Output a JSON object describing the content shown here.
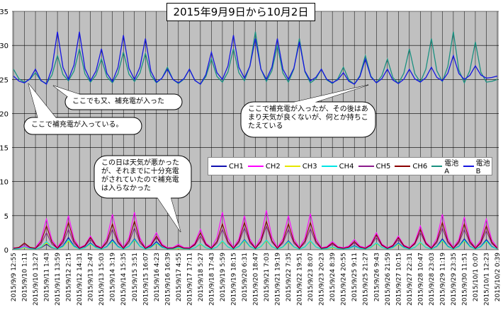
{
  "title": "2015年9月9日から10月2日",
  "chart_data": {
    "type": "line",
    "ylim": [
      0,
      35
    ],
    "yticks": [
      0,
      5,
      10,
      15,
      20,
      25,
      30,
      35
    ],
    "grid": true,
    "legend_position": "lower-right",
    "x": [
      "2015/9/9 12:55",
      "2015/9/10 1:11",
      "2015/9/10 13:27",
      "2015/9/11 1:43",
      "2015/9/11 13:59",
      "2015/9/12 2:15",
      "2015/9/12 14:31",
      "2015/9/13 2:47",
      "2015/9/13 15:03",
      "2015/9/14 3:19",
      "2015/9/14 15:35",
      "2015/9/15 3:51",
      "2015/9/15 16:07",
      "2015/9/16 4:23",
      "2015/9/16 16:39",
      "2015/9/17 4:55",
      "2015/9/17 17:11",
      "2015/9/18 5:27",
      "2015/9/18 17:43",
      "2015/9/19 5:59",
      "2015/9/19 18:15",
      "2015/9/20 6:31",
      "2015/9/20 18:47",
      "2015/9/21 7:03",
      "2015/9/21 19:19",
      "2015/9/22 7:35",
      "2015/9/22 19:51",
      "2015/9/23 8:07",
      "2015/9/23 20:23",
      "2015/9/24 8:39",
      "2015/9/24 20:55",
      "2015/9/25 9:11",
      "2015/9/25 21:27",
      "2015/9/26 9:43",
      "2015/9/26 21:59",
      "2015/9/27 10:15",
      "2015/9/27 22:31",
      "2015/9/28 10:47",
      "2015/9/28 23:03",
      "2015/9/29 11:19",
      "2015/9/29 23:35",
      "2015/9/30 11:51",
      "2015/10/1 0:07",
      "2015/10/1 12:23",
      "2015/10/2 0:39"
    ],
    "series": [
      {
        "name": "CH1",
        "color": "#1010b0",
        "values": [
          0.1,
          0.5,
          0.1,
          0.8,
          0.1,
          1.8,
          0.1,
          1.0,
          0.1,
          1.5,
          0.1,
          1.6,
          0.1,
          1.2,
          0.1,
          0.3,
          0.1,
          0.8,
          0.1,
          1.2,
          0.1,
          1.5,
          0.1,
          1.4,
          0.1,
          1.3,
          0.1,
          1.3,
          0.1,
          0.4,
          0.1,
          0.6,
          0.1,
          1.0,
          0.1,
          1.0,
          0.1,
          1.0,
          0.1,
          1.6,
          0.1,
          1.6,
          0.1,
          1.5,
          0.1
        ]
      },
      {
        "name": "CH2",
        "color": "#ff00ff",
        "values": [
          0.3,
          0.5,
          0.3,
          4.5,
          0.3,
          5.0,
          0.3,
          2.0,
          0.3,
          5.2,
          0.3,
          5.5,
          0.3,
          2.5,
          0.3,
          0.8,
          0.3,
          3.0,
          0.3,
          5.5,
          0.3,
          5.0,
          0.3,
          5.8,
          0.3,
          5.0,
          0.3,
          5.3,
          0.3,
          1.2,
          0.3,
          1.5,
          0.3,
          2.5,
          0.3,
          2.0,
          0.3,
          3.5,
          0.3,
          5.2,
          0.3,
          4.8,
          0.3,
          4.5,
          0.3
        ]
      },
      {
        "name": "CH3",
        "color": "#e6e600",
        "values": [
          0.1,
          0.3,
          0.1,
          1.0,
          0.1,
          1.3,
          0.1,
          0.8,
          0.1,
          1.2,
          0.1,
          1.4,
          0.1,
          0.9,
          0.1,
          0.2,
          0.1,
          0.8,
          0.1,
          1.2,
          0.1,
          1.3,
          0.1,
          1.3,
          0.1,
          1.1,
          0.1,
          1.2,
          0.1,
          0.3,
          0.1,
          0.5,
          0.1,
          0.9,
          0.1,
          0.8,
          0.1,
          1.0,
          0.1,
          1.3,
          0.1,
          1.3,
          0.1,
          1.2,
          0.1
        ]
      },
      {
        "name": "CH4",
        "color": "#00e5e5",
        "values": [
          0.1,
          0.4,
          0.1,
          1.2,
          0.1,
          1.5,
          0.1,
          0.9,
          0.1,
          1.3,
          0.1,
          1.5,
          0.1,
          1.0,
          0.1,
          0.3,
          0.1,
          0.9,
          0.1,
          1.3,
          0.1,
          1.4,
          0.1,
          1.4,
          0.1,
          1.2,
          0.1,
          1.3,
          0.1,
          0.4,
          0.1,
          0.5,
          0.1,
          1.0,
          0.1,
          0.9,
          0.1,
          1.1,
          0.1,
          1.4,
          0.1,
          1.4,
          0.1,
          1.3,
          0.1
        ]
      },
      {
        "name": "CH5",
        "color": "#8b1a8b",
        "values": [
          0.2,
          0.8,
          0.2,
          2.5,
          0.2,
          3.0,
          0.2,
          1.5,
          0.2,
          3.0,
          0.2,
          3.2,
          0.2,
          1.8,
          0.2,
          0.5,
          0.2,
          2.0,
          0.2,
          3.0,
          0.2,
          3.2,
          0.2,
          3.5,
          0.2,
          3.0,
          0.2,
          3.1,
          0.2,
          0.8,
          0.2,
          1.0,
          0.2,
          1.8,
          0.2,
          1.5,
          0.2,
          2.5,
          0.2,
          3.2,
          0.2,
          3.0,
          0.2,
          2.8,
          0.2
        ]
      },
      {
        "name": "CH6",
        "color": "#8b0000",
        "values": [
          0.2,
          1.0,
          0.2,
          3.5,
          0.2,
          4.0,
          0.2,
          1.8,
          0.2,
          3.8,
          0.2,
          4.2,
          0.2,
          2.0,
          0.2,
          0.6,
          0.2,
          2.5,
          0.2,
          3.8,
          0.2,
          4.0,
          0.2,
          4.2,
          0.2,
          3.8,
          0.2,
          4.0,
          0.2,
          1.0,
          0.2,
          1.2,
          0.2,
          2.2,
          0.2,
          1.8,
          0.2,
          3.0,
          0.2,
          4.0,
          0.2,
          3.8,
          0.2,
          3.5,
          0.2
        ]
      },
      {
        "name": "電池 A",
        "color": "#1a9080",
        "values": [
          26.5,
          24.6,
          26.0,
          24.4,
          28.5,
          24.8,
          29.5,
          24.6,
          28.0,
          24.5,
          29.0,
          24.7,
          28.8,
          24.5,
          26.8,
          24.4,
          26.5,
          24.3,
          28.0,
          24.6,
          29.5,
          24.8,
          32.0,
          24.7,
          30.0,
          24.6,
          31.0,
          24.5,
          26.5,
          24.4,
          26.8,
          24.3,
          28.5,
          24.5,
          28.0,
          24.4,
          29.5,
          24.6,
          31.0,
          24.7,
          32.0,
          24.5,
          30.5,
          24.6,
          25.0
        ]
      },
      {
        "name": "電池 B",
        "color": "#1515e0",
        "values": [
          25.5,
          24.5,
          26.5,
          24.3,
          32.0,
          25.0,
          32.0,
          24.8,
          29.5,
          24.7,
          31.5,
          25.0,
          31.0,
          24.6,
          26.5,
          24.5,
          26.5,
          24.3,
          29.0,
          25.0,
          31.5,
          25.2,
          31.0,
          25.0,
          31.0,
          25.0,
          30.5,
          24.8,
          26.5,
          24.5,
          26.0,
          24.3,
          28.0,
          24.5,
          26.5,
          24.4,
          26.5,
          24.6,
          26.8,
          24.8,
          28.5,
          25.0,
          27.0,
          25.2,
          25.5
        ]
      }
    ],
    "annotations": [
      "ここでも又、補充電が入った",
      "ここで補充電が入っている。",
      "ここで補充電が入ったが、その後はあまり天気が良くないが、何とか持ちこたえている",
      "この日は天気が悪かったが、それまでに十分充電がされていたので補充電は入らなかった"
    ]
  },
  "bubbles": {
    "b1": [
      "ここでも又、補充電が入った"
    ],
    "b2": [
      "ここで補充電が入っている。"
    ],
    "b3": [
      "ここで補充電が入ったが、その後はあ",
      "まり天気が良くないが、何とか持ちこ",
      "たえている"
    ],
    "b4": [
      "この日は天気が悪かった",
      "が、それまでに十分充電",
      "がされていたので補充電",
      "は入らなかった"
    ]
  }
}
